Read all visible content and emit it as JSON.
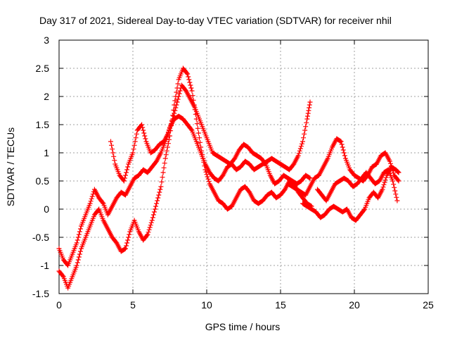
{
  "chart_data": {
    "type": "scatter",
    "title": "Day 317 of 2021, Sidereal Day-to-day VTEC variation (SDTVAR) for receiver nhil",
    "xlabel": "GPS time / hours",
    "ylabel": "SDTVAR / TECUs",
    "xlim": [
      0,
      25
    ],
    "ylim": [
      -1.5,
      3
    ],
    "xticks": [
      "0",
      "5",
      "10",
      "15",
      "20",
      "25"
    ],
    "yticks": [
      "-1.5",
      "-1",
      "-0.5",
      "0",
      "0.5",
      "1",
      "1.5",
      "2",
      "2.5",
      "3"
    ],
    "grid": true,
    "marker": "plus",
    "color": "#ff0000",
    "series": [
      {
        "x": [
          0.0,
          0.3,
          0.6,
          0.9,
          1.2,
          1.5,
          1.8,
          2.1,
          2.4,
          2.7,
          3.0,
          3.3,
          3.6,
          3.9,
          4.2,
          4.5,
          4.8,
          5.1,
          5.4,
          5.7,
          6.0,
          6.3,
          6.6,
          6.9,
          7.2,
          7.5,
          7.8,
          8.1,
          8.4,
          8.7,
          9.0,
          9.3,
          9.6,
          9.9,
          10.2,
          10.5,
          10.8,
          11.1,
          11.4,
          11.7,
          12.0,
          12.3,
          12.6,
          12.9,
          13.2,
          13.5,
          13.8,
          14.1,
          14.4,
          14.7,
          15.0,
          15.3,
          15.6,
          15.9,
          16.2,
          16.5,
          16.8,
          17.0
        ],
        "y": [
          -0.7,
          -0.9,
          -1.0,
          -0.8,
          -0.6,
          -0.3,
          -0.1,
          0.1,
          0.35,
          0.2,
          0.1,
          -0.1,
          0.05,
          0.2,
          0.3,
          0.25,
          0.4,
          0.55,
          0.6,
          0.7,
          0.65,
          0.75,
          0.85,
          1.0,
          1.2,
          1.45,
          1.6,
          1.65,
          1.6,
          1.5,
          1.4,
          1.2,
          1.0,
          0.8,
          0.65,
          0.55,
          0.5,
          0.6,
          0.75,
          0.8,
          0.7,
          0.75,
          0.85,
          0.8,
          0.7,
          0.75,
          0.8,
          0.85,
          0.9,
          0.85,
          0.8,
          0.75,
          0.7,
          0.8,
          0.95,
          1.2,
          1.6,
          1.9
        ]
      },
      {
        "x": [
          0.0,
          0.3,
          0.6,
          0.9,
          1.2,
          1.5,
          1.8,
          2.1,
          2.4,
          2.7,
          3.0,
          3.3,
          3.6,
          3.9,
          4.2,
          4.5,
          4.8,
          5.1,
          5.4,
          5.7,
          6.0,
          6.3,
          6.6,
          6.9,
          7.2,
          7.5,
          7.8,
          8.1,
          8.4,
          8.7,
          9.0,
          9.3,
          9.6,
          9.9,
          10.2,
          10.5,
          10.8,
          11.1,
          11.4,
          11.7,
          12.0,
          12.3,
          12.6,
          12.9,
          13.2,
          13.5,
          13.8,
          14.1,
          14.4,
          14.7,
          15.0,
          15.3,
          15.6,
          15.9,
          16.2,
          16.5,
          16.8,
          17.1
        ],
        "y": [
          -1.1,
          -1.2,
          -1.4,
          -1.2,
          -1.0,
          -0.7,
          -0.5,
          -0.3,
          -0.1,
          0.0,
          -0.2,
          -0.35,
          -0.5,
          -0.6,
          -0.75,
          -0.7,
          -0.4,
          -0.2,
          -0.4,
          -0.55,
          -0.45,
          -0.2,
          0.1,
          0.4,
          0.9,
          1.3,
          1.85,
          2.3,
          2.5,
          2.4,
          2.1,
          1.6,
          1.1,
          0.7,
          0.45,
          0.3,
          0.15,
          0.1,
          0.0,
          0.05,
          0.2,
          0.35,
          0.4,
          0.3,
          0.15,
          0.1,
          0.15,
          0.25,
          0.3,
          0.2,
          0.25,
          0.35,
          0.5,
          0.45,
          0.3,
          0.2,
          0.1,
          0.05
        ]
      },
      {
        "x": [
          3.5,
          3.8,
          4.1,
          4.4,
          4.7,
          5.0,
          5.3,
          5.6,
          5.9,
          6.2,
          6.5,
          6.8,
          7.1,
          7.4,
          7.7,
          8.0,
          8.3,
          8.6,
          8.9,
          9.2,
          9.5,
          9.8,
          10.1,
          10.4,
          10.7,
          11.0,
          11.3,
          11.6,
          11.9,
          12.2,
          12.5,
          12.8,
          13.1,
          13.4,
          13.7,
          14.0,
          14.3,
          14.6,
          14.9,
          15.2,
          15.5,
          15.8,
          16.1,
          16.4,
          16.7,
          17.0
        ],
        "y": [
          1.2,
          0.8,
          0.6,
          0.5,
          0.8,
          1.0,
          1.4,
          1.5,
          1.2,
          1.0,
          1.05,
          1.15,
          1.2,
          1.35,
          1.6,
          1.9,
          2.2,
          2.1,
          1.95,
          1.8,
          1.6,
          1.4,
          1.2,
          1.0,
          0.95,
          0.9,
          0.85,
          0.8,
          0.9,
          1.05,
          1.15,
          1.1,
          1.0,
          0.95,
          0.9,
          0.8,
          0.6,
          0.45,
          0.5,
          0.6,
          0.55,
          0.5,
          0.45,
          0.5,
          0.6,
          0.55
        ]
      },
      {
        "x": [
          15.5,
          15.8,
          16.1,
          16.4,
          16.7,
          17.0,
          17.3,
          17.6,
          17.9,
          18.2,
          18.5,
          18.8,
          19.1,
          19.4,
          19.7,
          20.0,
          20.3,
          20.6,
          20.9,
          21.2,
          21.5,
          21.8,
          22.1,
          22.4,
          22.7,
          23.0
        ],
        "y": [
          0.45,
          0.4,
          0.35,
          0.3,
          0.25,
          0.4,
          0.55,
          0.6,
          0.75,
          0.9,
          1.1,
          1.25,
          1.2,
          0.9,
          0.7,
          0.6,
          0.55,
          0.5,
          0.6,
          0.75,
          0.8,
          0.95,
          1.0,
          0.85,
          0.6,
          0.5
        ]
      },
      {
        "x": [
          16.5,
          16.8,
          17.1,
          17.4,
          17.7,
          18.0,
          18.3,
          18.6,
          18.9,
          19.2,
          19.5,
          19.8,
          20.1,
          20.4,
          20.7,
          21.0,
          21.3,
          21.6,
          21.9,
          22.2,
          22.5,
          22.8,
          23.0
        ],
        "y": [
          0.1,
          0.05,
          0.0,
          -0.05,
          -0.15,
          -0.1,
          0.0,
          0.05,
          0.0,
          -0.05,
          0.0,
          -0.15,
          -0.2,
          -0.1,
          0.0,
          0.2,
          0.3,
          0.2,
          0.35,
          0.6,
          0.75,
          0.7,
          0.65
        ]
      },
      {
        "x": [
          17.5,
          17.8,
          18.1,
          18.4,
          18.7,
          19.0,
          19.3,
          19.6,
          19.9,
          20.2,
          20.5,
          20.8,
          21.1,
          21.4,
          21.7,
          22.0,
          22.3,
          22.6,
          22.9
        ],
        "y": [
          0.35,
          0.25,
          0.15,
          0.3,
          0.45,
          0.5,
          0.55,
          0.5,
          0.4,
          0.45,
          0.55,
          0.65,
          0.55,
          0.45,
          0.5,
          0.65,
          0.7,
          0.5,
          0.15
        ]
      }
    ]
  }
}
